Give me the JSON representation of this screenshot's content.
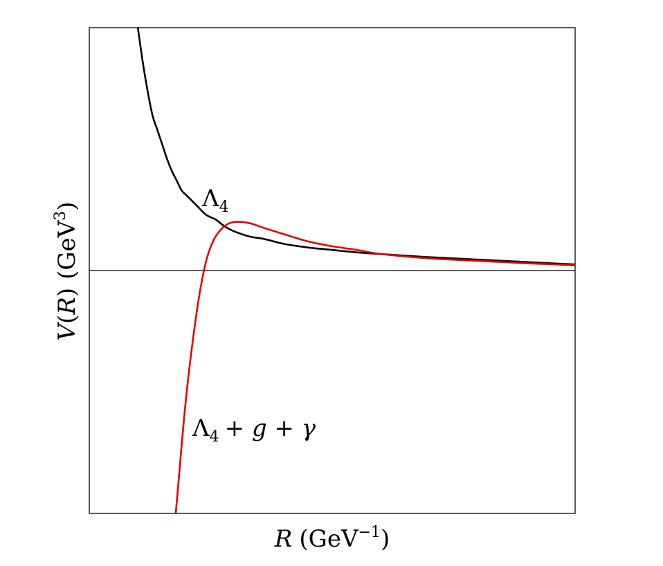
{
  "chart_data": {
    "type": "line",
    "xlabel": {
      "symbol": "R",
      "unit": "GeV",
      "exponent": "−1"
    },
    "ylabel": {
      "symbol": "V",
      "argument": "R",
      "unit": "GeV",
      "exponent": "3"
    },
    "xlim": [
      0,
      10
    ],
    "ylim": [
      -10,
      10
    ],
    "zero_line": true,
    "grid": false,
    "series": [
      {
        "name": "Λ4",
        "label": {
          "base": "Λ",
          "subscript": "4"
        },
        "color": "#000000",
        "points": [
          [
            1.0,
            10.0
          ],
          [
            1.1,
            8.6
          ],
          [
            1.2,
            7.4
          ],
          [
            1.3,
            6.4
          ],
          [
            1.4,
            5.8
          ],
          [
            1.5,
            5.2
          ],
          [
            1.6,
            4.6
          ],
          [
            1.7,
            4.1
          ],
          [
            1.8,
            3.7
          ],
          [
            1.9,
            3.3
          ],
          [
            2.0,
            3.1
          ],
          [
            2.2,
            2.7
          ],
          [
            2.4,
            2.3
          ],
          [
            2.6,
            2.1
          ],
          [
            2.8,
            1.8
          ],
          [
            3.0,
            1.6
          ],
          [
            3.3,
            1.4
          ],
          [
            3.6,
            1.3
          ],
          [
            4.0,
            1.1
          ],
          [
            4.5,
            0.95
          ],
          [
            5.0,
            0.85
          ],
          [
            5.5,
            0.75
          ],
          [
            6.0,
            0.68
          ],
          [
            7.0,
            0.55
          ],
          [
            8.0,
            0.45
          ],
          [
            9.0,
            0.35
          ],
          [
            10.0,
            0.25
          ]
        ]
      },
      {
        "name": "Λ4 + g + γ",
        "label": {
          "base": "Λ",
          "subscript": "4",
          "rest": "+ g + γ"
        },
        "color": "#e60000",
        "points": [
          [
            1.78,
            -10.0
          ],
          [
            1.85,
            -8.4
          ],
          [
            1.95,
            -6.1
          ],
          [
            2.05,
            -4.2
          ],
          [
            2.15,
            -2.6
          ],
          [
            2.25,
            -1.2
          ],
          [
            2.35,
            -0.1
          ],
          [
            2.45,
            0.7
          ],
          [
            2.6,
            1.4
          ],
          [
            2.8,
            1.85
          ],
          [
            3.0,
            2.0
          ],
          [
            3.3,
            1.95
          ],
          [
            3.6,
            1.75
          ],
          [
            4.0,
            1.5
          ],
          [
            4.5,
            1.2
          ],
          [
            5.0,
            1.0
          ],
          [
            5.5,
            0.85
          ],
          [
            6.0,
            0.68
          ],
          [
            7.0,
            0.5
          ],
          [
            8.0,
            0.4
          ],
          [
            9.0,
            0.3
          ],
          [
            10.0,
            0.22
          ]
        ]
      }
    ]
  }
}
